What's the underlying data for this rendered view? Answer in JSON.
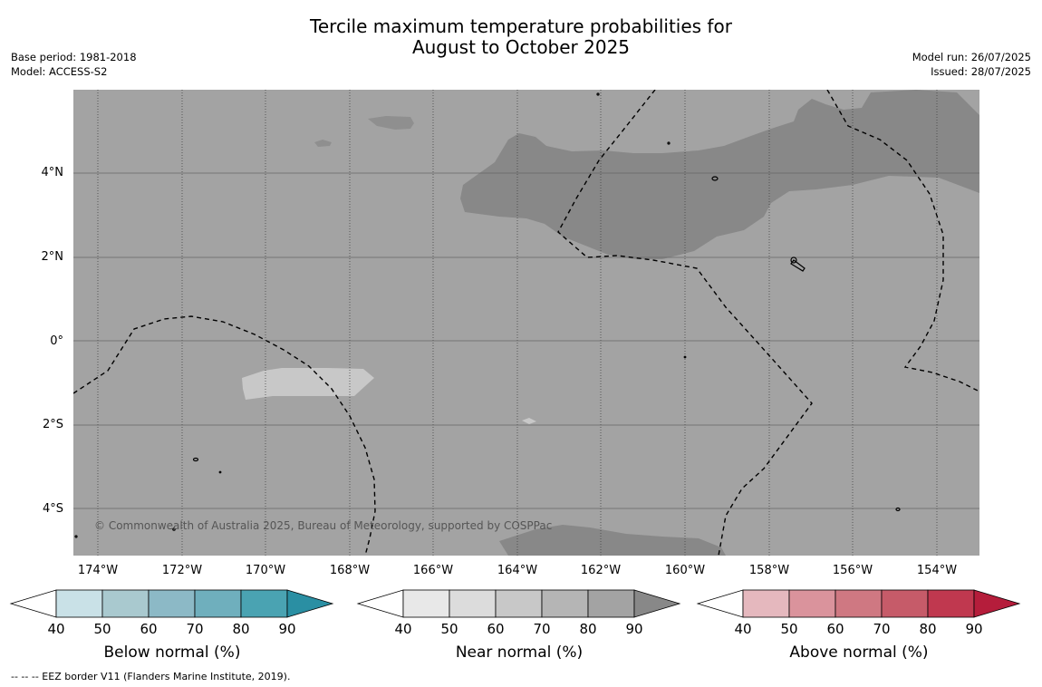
{
  "title_line1": "Tercile maximum temperature probabilities for",
  "title_line2": "August to October 2025",
  "base_period": "Base period: 1981-2018",
  "model": "Model: ACCESS-S2",
  "model_run": "Model run: 26/07/2025",
  "issued": "Issued: 28/07/2025",
  "copyright": "© Commonwealth of Australia 2025, Bureau of Meteorology, supported by COSPPac",
  "lat_labels": [
    "4°N",
    "2°N",
    "0°",
    "2°S",
    "4°S"
  ],
  "lon_labels": [
    "174°W",
    "172°W",
    "170°W",
    "168°W",
    "166°W",
    "164°W",
    "162°W",
    "160°W",
    "158°W",
    "156°W",
    "154°W"
  ],
  "colorbars": [
    {
      "label": "Below normal (%)",
      "ticks": [
        "40",
        "50",
        "60",
        "70",
        "80",
        "90"
      ],
      "colors": [
        "#ffffff",
        "#c9e1e7",
        "#a9c9cf",
        "#8cb9c6",
        "#6fafbd",
        "#4aa3b2",
        "#2a8fa3"
      ]
    },
    {
      "label": "Near normal (%)",
      "ticks": [
        "40",
        "50",
        "60",
        "70",
        "80",
        "90"
      ],
      "colors": [
        "#ffffff",
        "#e8e8e8",
        "#dcdcdc",
        "#c8c8c8",
        "#b5b5b5",
        "#a3a3a3",
        "#888888"
      ]
    },
    {
      "label": "Above normal (%)",
      "ticks": [
        "40",
        "50",
        "60",
        "70",
        "80",
        "90"
      ],
      "colors": [
        "#ffffff",
        "#e5b8be",
        "#da939c",
        "#cf7882",
        "#c65b69",
        "#c0384f",
        "#b51d3b"
      ]
    }
  ],
  "map_colors": {
    "near_80": "#a3a3a3",
    "near_90": "#888888",
    "near_60": "#c8c8c8"
  },
  "footer": "-- -- -- EEZ border V11 (Flanders Marine Institute, 2019)."
}
